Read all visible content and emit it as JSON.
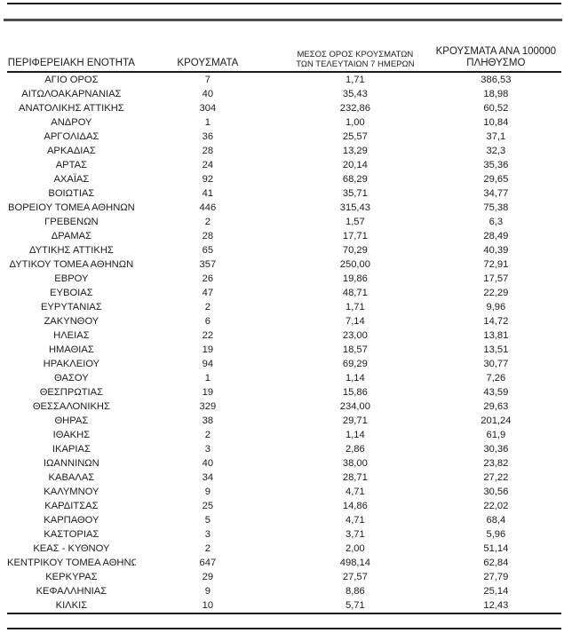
{
  "colors": {
    "text": "#1b1b1b",
    "rule_dark": "#1a1a1a",
    "rule_gray": "#4d4d4d"
  },
  "table": {
    "headers": [
      {
        "label": "ΠΕΡΙΦΕΡΕΙΑΚΗ ΕΝΟΤΗΤΑ"
      },
      {
        "label": "ΚΡΟΥΣΜΑΤΑ"
      },
      {
        "line1": "ΜΕΣΟΣ ΟΡΟΣ ΚΡΟΥΣΜΑΤΩΝ",
        "line2": "ΤΩΝ ΤΕΛΕΥΤΑΙΩΝ 7 ΗΜΕΡΩΝ"
      },
      {
        "line1": "ΚΡΟΥΣΜΑΤΑ ΑΝΑ 100000",
        "line2": "ΠΛΗΘΥΣΜΟ"
      }
    ],
    "rows": [
      [
        "ΑΓΙΟ ΟΡΟΣ",
        "7",
        "1,71",
        "386,53"
      ],
      [
        "ΑΙΤΩΛΟΑΚΑΡΝΑΝΙΑΣ",
        "40",
        "35,43",
        "18,98"
      ],
      [
        "ΑΝΑΤΟΛΙΚΗΣ ΑΤΤΙΚΗΣ",
        "304",
        "232,86",
        "60,52"
      ],
      [
        "ΑΝΔΡΟΥ",
        "1",
        "1,00",
        "10,84"
      ],
      [
        "ΑΡΓΟΛΙΔΑΣ",
        "36",
        "25,57",
        "37,1"
      ],
      [
        "ΑΡΚΑΔΙΑΣ",
        "28",
        "13,29",
        "32,3"
      ],
      [
        "ΑΡΤΑΣ",
        "24",
        "20,14",
        "35,36"
      ],
      [
        "ΑΧΑΪΑΣ",
        "92",
        "68,29",
        "29,65"
      ],
      [
        "ΒΟΙΩΤΙΑΣ",
        "41",
        "35,71",
        "34,77"
      ],
      [
        "ΒΟΡΕΙΟΥ ΤΟΜΕΑ ΑΘΗΝΩΝ",
        "446",
        "315,43",
        "75,38"
      ],
      [
        "ΓΡΕΒΕΝΩΝ",
        "2",
        "1,57",
        "6,3"
      ],
      [
        "ΔΡΑΜΑΣ",
        "28",
        "17,71",
        "28,49"
      ],
      [
        "ΔΥΤΙΚΗΣ ΑΤΤΙΚΗΣ",
        "65",
        "70,29",
        "40,39"
      ],
      [
        "ΔΥΤΙΚΟΥ ΤΟΜΕΑ ΑΘΗΝΩΝ",
        "357",
        "250,00",
        "72,91"
      ],
      [
        "ΕΒΡΟΥ",
        "26",
        "19,86",
        "17,57"
      ],
      [
        "ΕΥΒΟΙΑΣ",
        "47",
        "48,71",
        "22,29"
      ],
      [
        "ΕΥΡΥΤΑΝΙΑΣ",
        "2",
        "1,71",
        "9,96"
      ],
      [
        "ΖΑΚΥΝΘΟΥ",
        "6",
        "7,14",
        "14,72"
      ],
      [
        "ΗΛΕΙΑΣ",
        "22",
        "23,00",
        "13,81"
      ],
      [
        "ΗΜΑΘΙΑΣ",
        "19",
        "18,57",
        "13,51"
      ],
      [
        "ΗΡΑΚΛΕΙΟΥ",
        "94",
        "69,29",
        "30,77"
      ],
      [
        "ΘΑΣΟΥ",
        "1",
        "1,14",
        "7,26"
      ],
      [
        "ΘΕΣΠΡΩΤΙΑΣ",
        "19",
        "15,86",
        "43,59"
      ],
      [
        "ΘΕΣΣΑΛΟΝΙΚΗΣ",
        "329",
        "234,00",
        "29,63"
      ],
      [
        "ΘΗΡΑΣ",
        "38",
        "29,71",
        "201,24"
      ],
      [
        "ΙΘΑΚΗΣ",
        "2",
        "1,14",
        "61,9"
      ],
      [
        "ΙΚΑΡΙΑΣ",
        "3",
        "2,86",
        "30,36"
      ],
      [
        "ΙΩΑΝΝΙΝΩΝ",
        "40",
        "38,00",
        "23,82"
      ],
      [
        "ΚΑΒΑΛΑΣ",
        "34",
        "28,71",
        "27,22"
      ],
      [
        "ΚΑΛΥΜΝΟΥ",
        "9",
        "4,71",
        "30,56"
      ],
      [
        "ΚΑΡΔΙΤΣΑΣ",
        "25",
        "14,86",
        "22,02"
      ],
      [
        "ΚΑΡΠΑΘΟΥ",
        "5",
        "4,71",
        "68,4"
      ],
      [
        "ΚΑΣΤΟΡΙΑΣ",
        "3",
        "3,71",
        "5,96"
      ],
      [
        "ΚΕΑΣ - ΚΥΘΝΟΥ",
        "2",
        "2,00",
        "51,14"
      ],
      [
        "ΚΕΝΤΡΙΚΟΥ ΤΟΜΕΑ ΑΘΗΝΩΝ",
        "647",
        "498,14",
        "62,84"
      ],
      [
        "ΚΕΡΚΥΡΑΣ",
        "29",
        "27,57",
        "27,79"
      ],
      [
        "ΚΕΦΑΛΛΗΝΙΑΣ",
        "9",
        "8,86",
        "25,14"
      ],
      [
        "ΚΙΛΚΙΣ",
        "10",
        "5,71",
        "12,43"
      ]
    ]
  }
}
